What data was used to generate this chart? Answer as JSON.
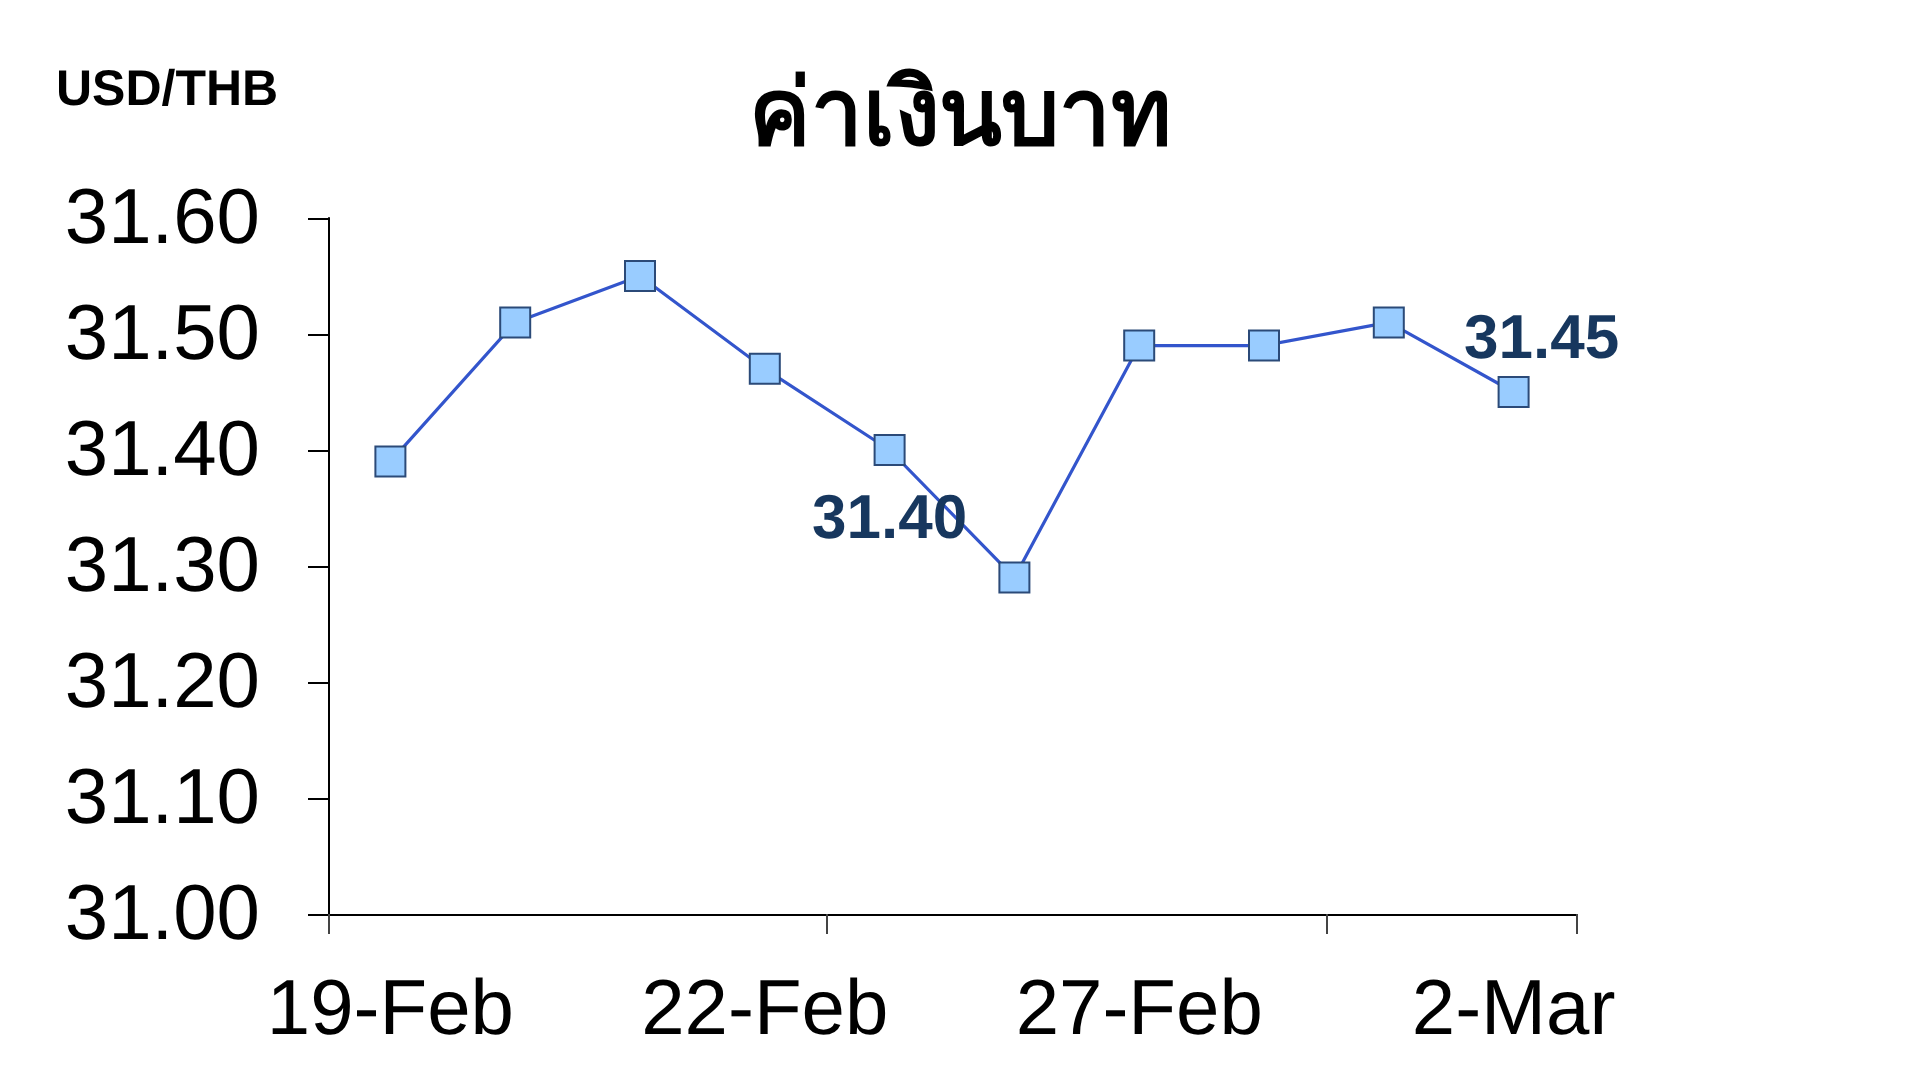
{
  "chart_data": {
    "type": "line",
    "title": "ค่าเงินบาท",
    "ylabel": "USD/THB",
    "categories": [
      "19-Feb",
      null,
      null,
      "22-Feb",
      null,
      null,
      "27-Feb",
      null,
      null,
      "2-Mar"
    ],
    "series": [
      {
        "color": "#3355cc",
        "values": [
          31.39,
          31.51,
          31.55,
          31.47,
          31.4,
          31.29,
          31.49,
          31.49,
          31.51,
          31.45
        ],
        "value_labels": [
          null,
          null,
          null,
          null,
          "31.40",
          null,
          null,
          null,
          null,
          "31.45"
        ]
      }
    ],
    "ylim": [
      31.0,
      31.6
    ],
    "yticks": [
      {
        "value": 31.0,
        "label": "31.00"
      },
      {
        "value": 31.1,
        "label": "31.10"
      },
      {
        "value": 31.2,
        "label": "31.20"
      },
      {
        "value": 31.3,
        "label": "31.30"
      },
      {
        "value": 31.4,
        "label": "31.40"
      },
      {
        "value": 31.5,
        "label": "31.50"
      },
      {
        "value": 31.6,
        "label": "31.60"
      }
    ],
    "grid": false,
    "marker": "square",
    "line_style": "solid"
  }
}
